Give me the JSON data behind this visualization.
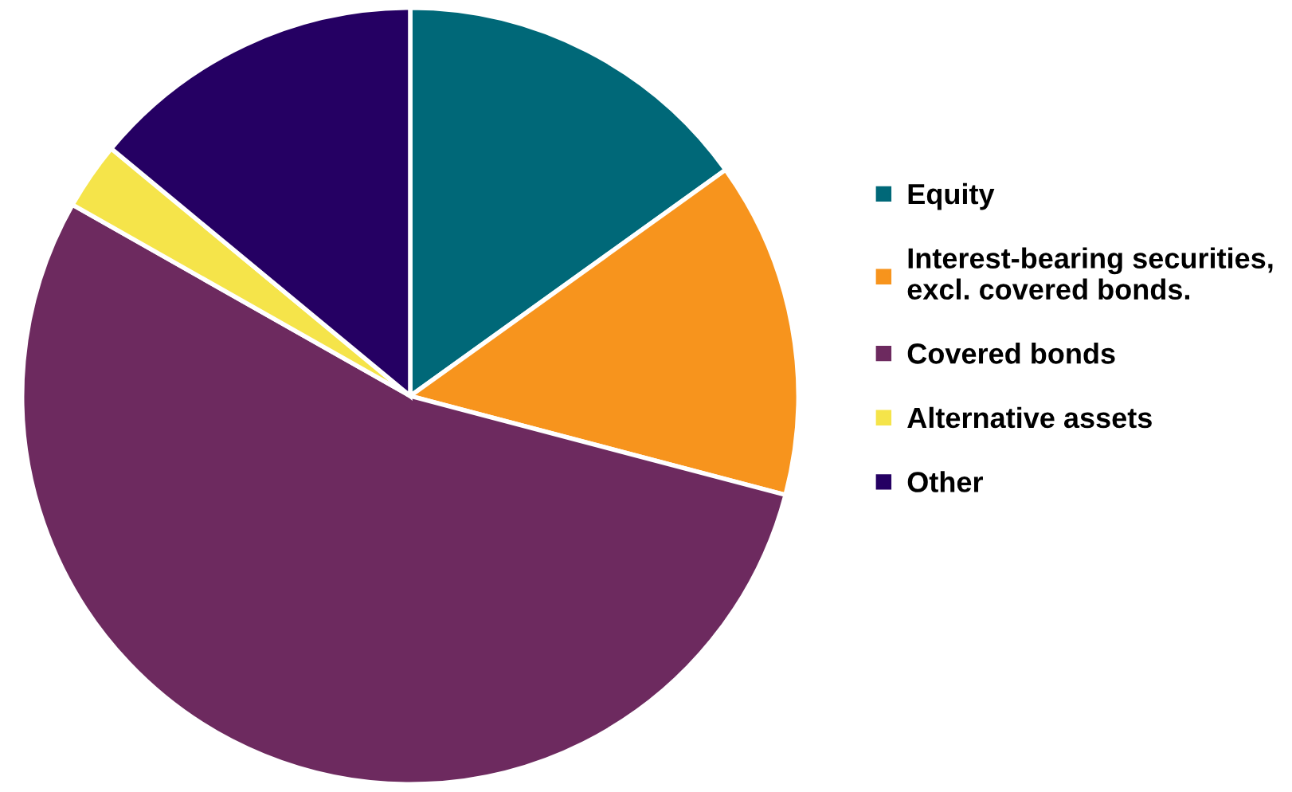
{
  "chart_data": {
    "type": "pie",
    "categories": [
      "Equity",
      "Interest-bearing securities,\nexcl. covered bonds.",
      "Covered bonds",
      "Alternative assets",
      "Other"
    ],
    "values": [
      15.1,
      14.0,
      54.1,
      2.8,
      14.0
    ],
    "colors": [
      "#006878",
      "#f7941d",
      "#6d2a5f",
      "#f5e44a",
      "#250063"
    ],
    "legend": "right"
  }
}
